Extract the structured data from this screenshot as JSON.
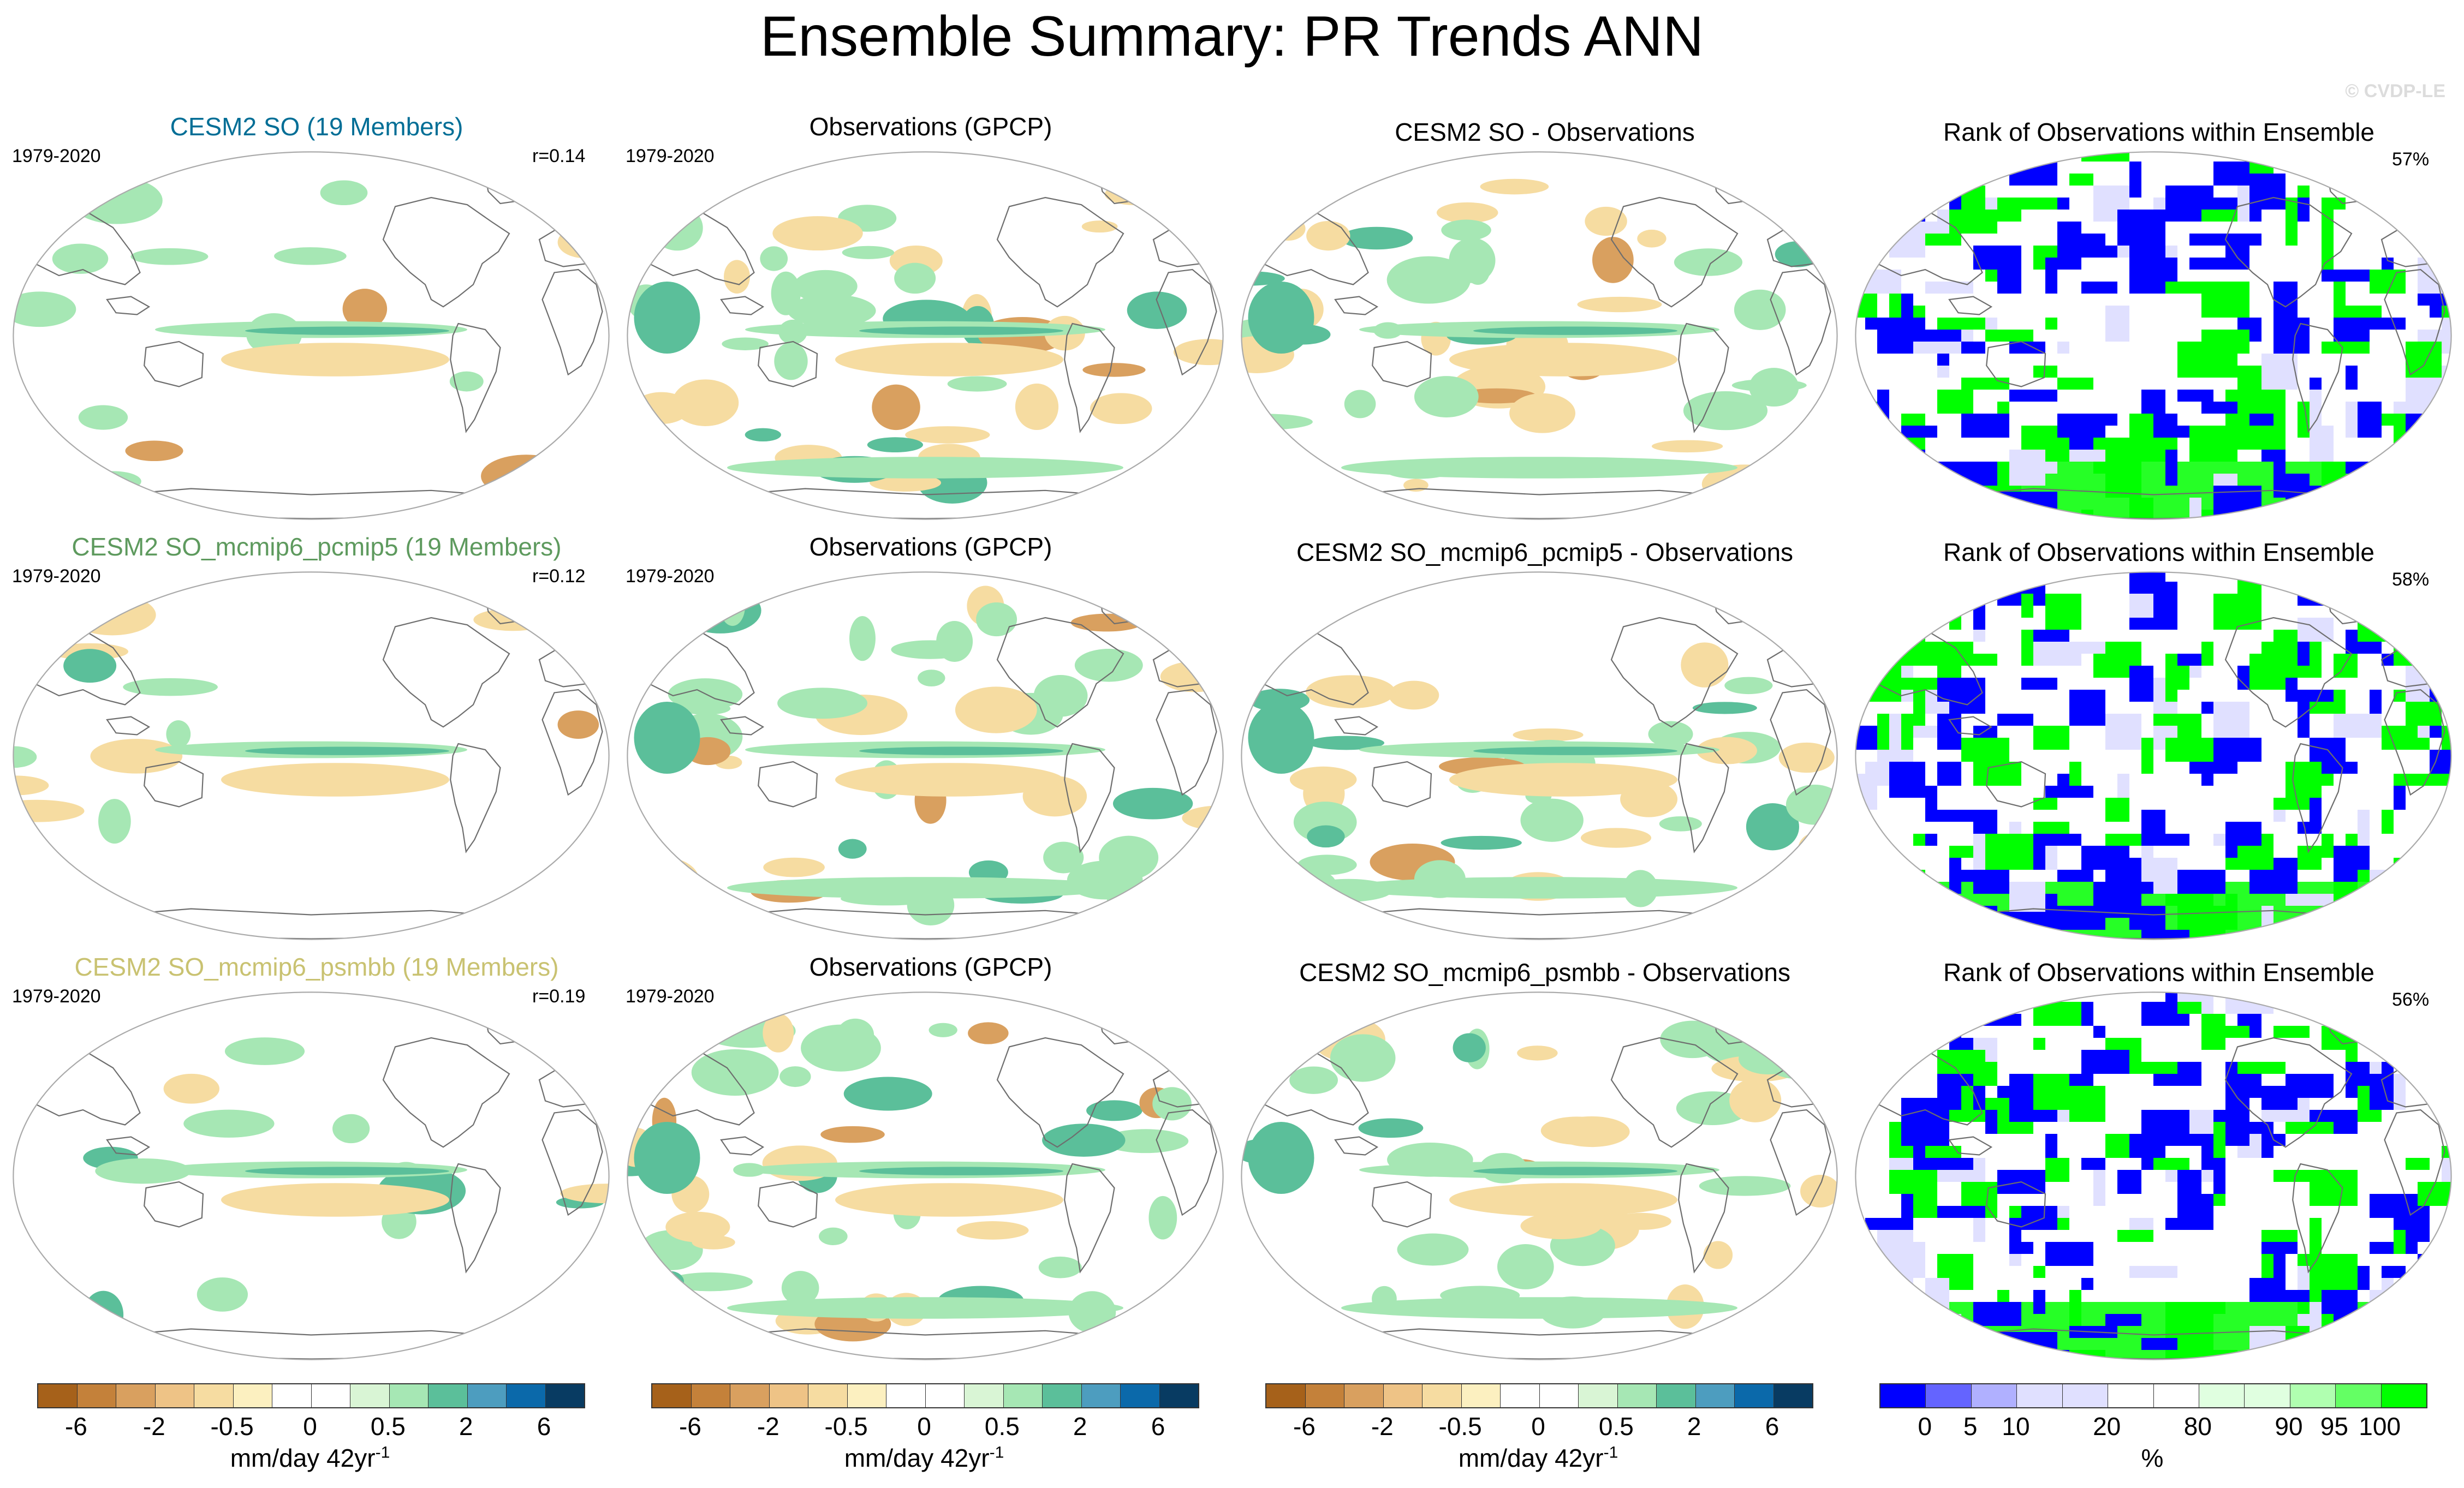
{
  "title": "Ensemble Summary: PR Trends ANN",
  "watermark": "© CVDP-LE",
  "rows": [
    {
      "ens_title": "CESM2 SO (19 Members)",
      "ens_color": "#006e96",
      "period_ens": "1979-2020",
      "corr": "r=0.14",
      "obs_title": "Observations (GPCP)",
      "period_obs": "1979-2020",
      "diff_title": "CESM2 SO - Observations",
      "rank_title": "Rank of Observations within Ensemble",
      "rank_pct": "57%"
    },
    {
      "ens_title": "CESM2 SO_mcmip6_pcmip5 (19 Members)",
      "ens_color": "#5e9a5e",
      "period_ens": "1979-2020",
      "corr": "r=0.12",
      "obs_title": "Observations (GPCP)",
      "period_obs": "1979-2020",
      "diff_title": "CESM2 SO_mcmip6_pcmip5 - Observations",
      "rank_title": "Rank of Observations within Ensemble",
      "rank_pct": "58%"
    },
    {
      "ens_title": "CESM2 SO_mcmip6_psmbb (19 Members)",
      "ens_color": "#c9c271",
      "period_ens": "1979-2020",
      "corr": "r=0.19",
      "obs_title": "Observations (GPCP)",
      "period_obs": "1979-2020",
      "diff_title": "CESM2 SO_mcmip6_psmbb - Observations",
      "rank_title": "Rank of Observations within Ensemble",
      "rank_pct": "56%"
    }
  ],
  "pr_colorbar": {
    "colors": [
      "#a6611a",
      "#c4813a",
      "#d9a05f",
      "#eec386",
      "#f6dca1",
      "#fcf0c0",
      "#ffffff",
      "#ffffff",
      "#d9f5d5",
      "#a6e7b4",
      "#5bbf9a",
      "#4d9dbf",
      "#0b69aa",
      "#083b62"
    ],
    "ticks": [
      "-6",
      "-2",
      "-0.5",
      "0",
      "0.5",
      "2",
      "6"
    ],
    "unit": "mm/day 42yr",
    "unit_sup": "-1"
  },
  "rank_colorbar": {
    "colors": [
      "#0000ff",
      "#6464ff",
      "#b0b0ff",
      "#e0e0ff",
      "#e0e0ff",
      "#ffffff",
      "#ffffff",
      "#e0ffe0",
      "#e0ffe0",
      "#b0ffb0",
      "#64ff64",
      "#00ff00"
    ],
    "ticks": [
      "0",
      "5",
      "10",
      "20",
      "80",
      "90",
      "95",
      "100"
    ],
    "unit": "%"
  },
  "map_colors": {
    "land_line": "#6e6e6e",
    "wet": "#a6e7b4",
    "wet_strong": "#5bbf9a",
    "dry": "#f6dca1",
    "dry_strong": "#d9a05f",
    "rank_low": "#0000ff",
    "rank_high": "#00ff00",
    "rank_mid": "#e0e0ff"
  }
}
